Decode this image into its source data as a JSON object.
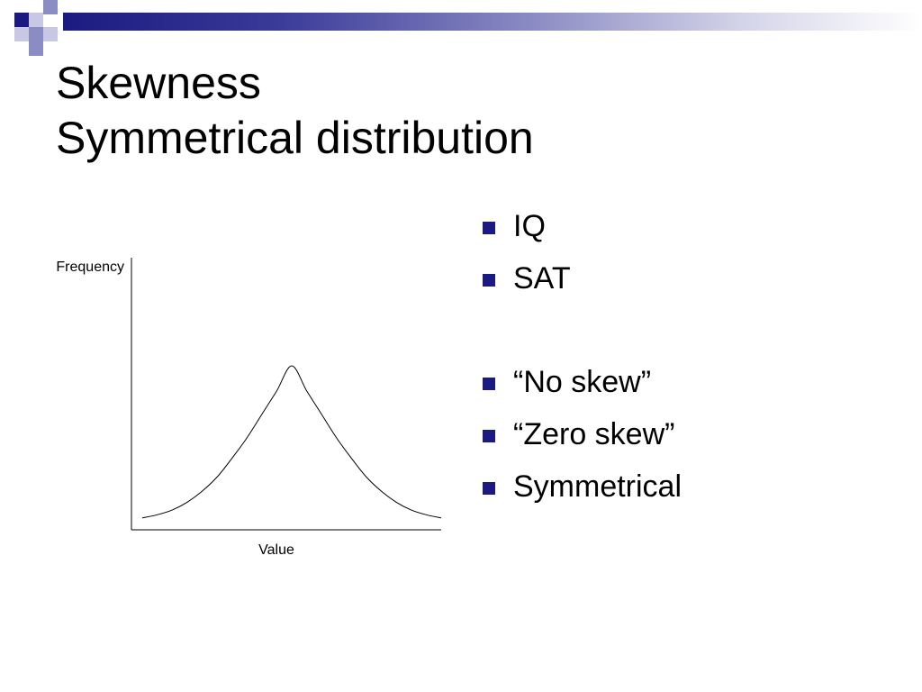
{
  "slide": {
    "title_line1": "Skewness",
    "title_line2": "Symmetrical distribution"
  },
  "colors": {
    "accent": "#1a1a80",
    "accent_light": "#8c8cc4",
    "accent_pale": "#c8c8e4"
  },
  "chart_data": {
    "type": "line",
    "xlabel": "Value",
    "ylabel": "Frequency",
    "shape": "symmetric-normal",
    "series": [
      {
        "x": [
          0,
          0.5,
          1,
          1.5,
          2,
          2.5,
          3,
          3.5,
          4,
          4.5,
          5,
          5.5,
          6,
          6.5,
          7,
          7.5,
          8,
          8.5,
          9,
          9.5,
          10
        ],
        "values": [
          0.03,
          0.05,
          0.08,
          0.13,
          0.2,
          0.29,
          0.41,
          0.54,
          0.69,
          0.84,
          1.0,
          0.84,
          0.69,
          0.54,
          0.41,
          0.29,
          0.2,
          0.13,
          0.08,
          0.05,
          0.03
        ]
      }
    ],
    "grid": false,
    "legend": "none"
  },
  "bullets": {
    "group1": [
      "IQ",
      "SAT"
    ],
    "group2": [
      "“No skew”",
      "“Zero skew”",
      "Symmetrical"
    ],
    "marker_icon": "square-bullet-icon"
  }
}
